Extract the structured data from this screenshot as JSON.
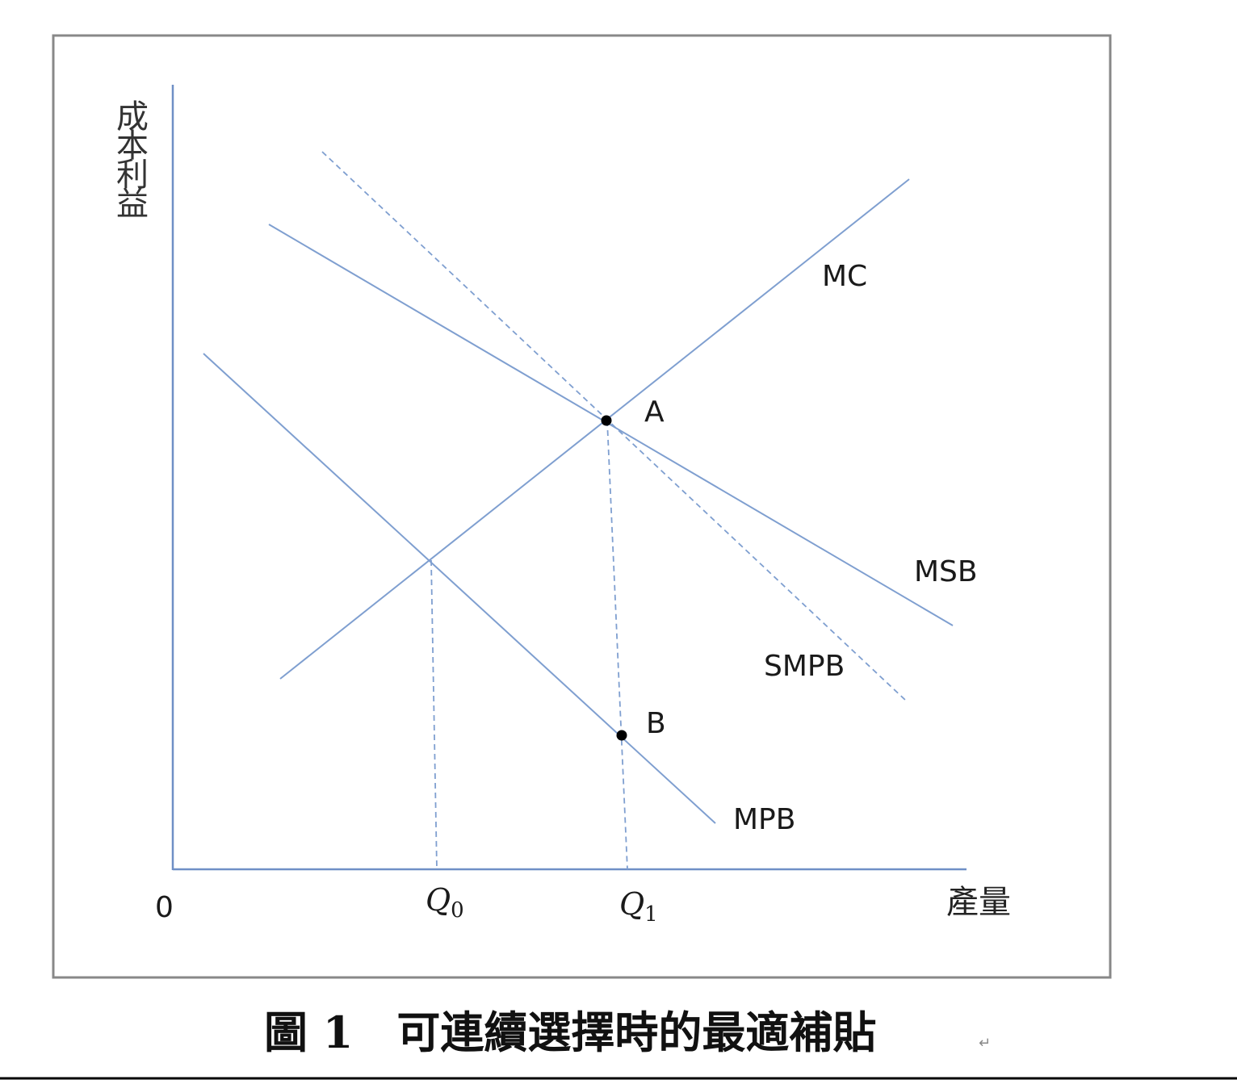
{
  "axes": {
    "y_label": "成本利益",
    "x_label": "產量",
    "origin_label": "0"
  },
  "curves": {
    "mc": "MC",
    "msb": "MSB",
    "smpb": "SMPB",
    "mpb": "MPB"
  },
  "points": {
    "a": "A",
    "b": "B"
  },
  "quantities": {
    "q0": "Q",
    "q0_sub": "0",
    "q1": "Q",
    "q1_sub": "1"
  },
  "caption": {
    "text": "圖 1　可連續選擇時的最適補貼",
    "mark": "↵"
  },
  "colors": {
    "curve": "#7f9fd0",
    "axis": "#6f8fc6",
    "frame": "#888888"
  }
}
